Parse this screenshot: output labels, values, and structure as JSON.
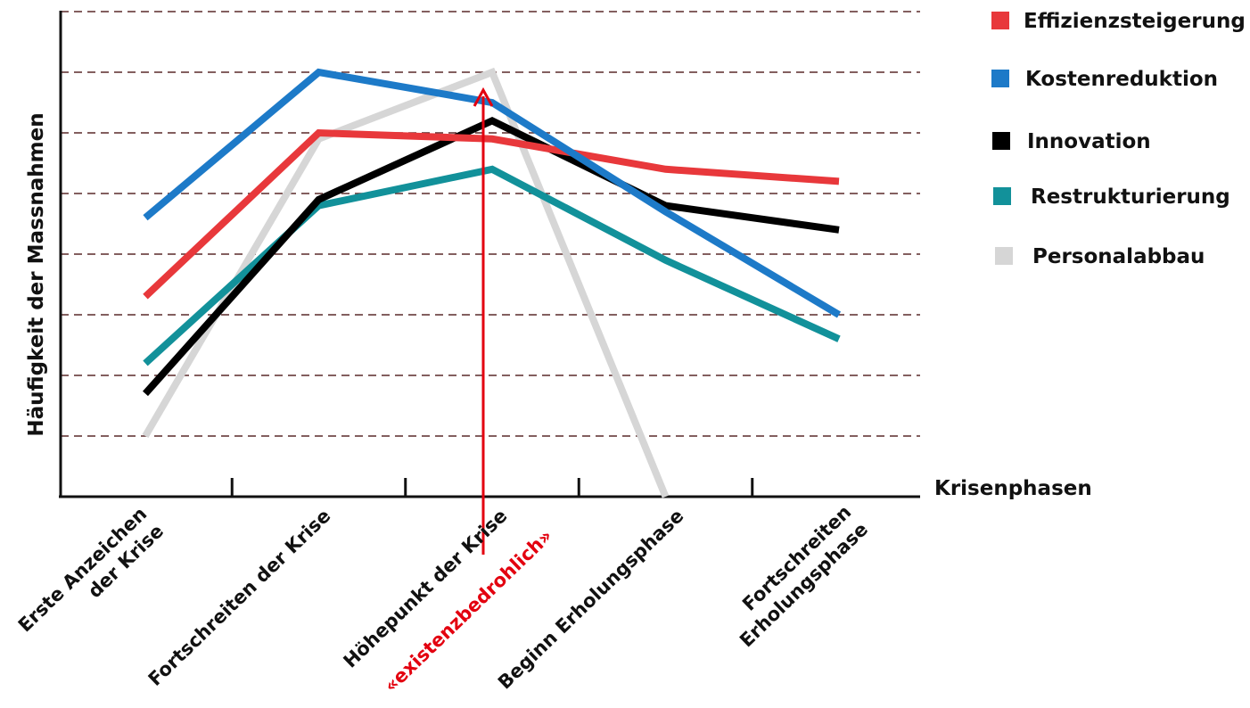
{
  "chart_data": {
    "type": "line",
    "title": "",
    "ylabel": "Häufigkeit der Massnahmen",
    "xlabel": "Krisenphasen",
    "ylim": [
      0,
      8
    ],
    "grid": true,
    "legend_position": "top-right",
    "categories": [
      [
        "Erste Anzeichen",
        "der Krise"
      ],
      [
        "Fortschreiten der Krise"
      ],
      [
        "Höhepunkt der Krise"
      ],
      [
        "Beginn Erholungsphase"
      ],
      [
        "Fortschreiten",
        "Erholungsphase"
      ]
    ],
    "series": [
      {
        "name": "Personalabbau",
        "color": "#d6d6d6",
        "points": [
          [
            0,
            1.0
          ],
          [
            1,
            5.9
          ],
          [
            2,
            7.0
          ],
          [
            3,
            0.0
          ]
        ]
      },
      {
        "name": "Restrukturierung",
        "color": "#12919a",
        "points": [
          [
            0,
            2.2
          ],
          [
            1,
            4.8
          ],
          [
            2,
            5.4
          ],
          [
            3,
            3.9
          ],
          [
            4,
            2.6
          ]
        ]
      },
      {
        "name": "Innovation",
        "color": "#000000",
        "points": [
          [
            0,
            1.7
          ],
          [
            1,
            4.9
          ],
          [
            2,
            6.2
          ],
          [
            3,
            4.8
          ],
          [
            4,
            4.4
          ]
        ]
      },
      {
        "name": "Effizienzsteigerung",
        "color": "#e8383b",
        "points": [
          [
            0,
            3.3
          ],
          [
            1,
            6.0
          ],
          [
            2,
            5.9
          ],
          [
            3,
            5.4
          ],
          [
            4,
            5.2
          ]
        ]
      },
      {
        "name": "Kostenreduktion",
        "color": "#1d7ac8",
        "points": [
          [
            0,
            4.6
          ],
          [
            1,
            7.0
          ],
          [
            2,
            6.5
          ],
          [
            3,
            4.7
          ],
          [
            4,
            3.0
          ]
        ]
      }
    ],
    "legend_order": [
      "Effizienzsteigerung",
      "Kostenreduktion",
      "Innovation",
      "Restrukturierung",
      "Personalabbau"
    ],
    "annotation": {
      "text": "«existenzbedrohlich»",
      "color": "#e3000f",
      "category_index": 2
    }
  }
}
